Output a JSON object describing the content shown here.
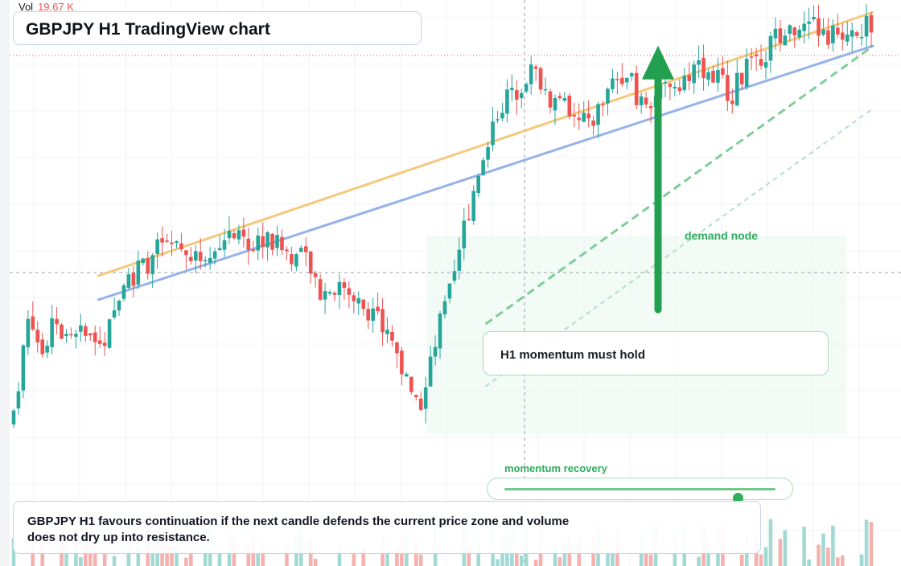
{
  "header": {
    "vol_label": "Vol",
    "vol_value": "19.67 K",
    "title": "GBPJPY H1 TradingView chart"
  },
  "annotations": {
    "demand_label": "demand node",
    "momentum_box_text": "H1 momentum must hold",
    "recovery_label": "momentum recovery",
    "recovery_level": 0.86,
    "note": "GBPJPY H1 favours continuation if the next candle defends the current price zone and volume does not dry up into resistance."
  },
  "colors": {
    "up": "#26a69a",
    "down": "#ef5350",
    "vol_up": "#a3d9d3",
    "vol_down": "#f5b1af",
    "upper_trendline": "#f5c97b",
    "lower_trendline": "#96b2ea",
    "accent_green": "#2fae5c"
  },
  "chart_data": {
    "type": "candlestick",
    "title": "GBPJPY H1 TradingView chart",
    "symbol": "GBPJPY",
    "timeframe": "H1",
    "grid": true,
    "legend": "none",
    "y_range": [
      0,
      100
    ],
    "x_range": [
      0,
      100
    ],
    "last_volume": "19.67 K",
    "price_path": [
      [
        0,
        14
      ],
      [
        2.2,
        38
      ],
      [
        3.5,
        30
      ],
      [
        5,
        35
      ],
      [
        7,
        31
      ],
      [
        9,
        34
      ],
      [
        11,
        32
      ],
      [
        13,
        44
      ],
      [
        15.5,
        47
      ],
      [
        17.5,
        52
      ],
      [
        19.5,
        50
      ],
      [
        21.5,
        48
      ],
      [
        23.5,
        52
      ],
      [
        25.5,
        54
      ],
      [
        27.5,
        50
      ],
      [
        29,
        53
      ],
      [
        31,
        51
      ],
      [
        33,
        49
      ],
      [
        34.5,
        48
      ],
      [
        35.5,
        41
      ],
      [
        37.5,
        43
      ],
      [
        39.5,
        40
      ],
      [
        41.5,
        38
      ],
      [
        43,
        34
      ],
      [
        44.5,
        30
      ],
      [
        46,
        22
      ],
      [
        47,
        17
      ],
      [
        48,
        21
      ],
      [
        49.5,
        34
      ],
      [
        51.5,
        45
      ],
      [
        52.5,
        55
      ],
      [
        54.5,
        70
      ],
      [
        56.5,
        80
      ],
      [
        58.5,
        84
      ],
      [
        60.5,
        88
      ],
      [
        62.5,
        82
      ],
      [
        64,
        81
      ],
      [
        65.5,
        76
      ],
      [
        67.5,
        78
      ],
      [
        69.5,
        84
      ],
      [
        71.5,
        89
      ],
      [
        72.5,
        80
      ],
      [
        73.5,
        82
      ],
      [
        75.5,
        83
      ],
      [
        77.5,
        86
      ],
      [
        79.5,
        89
      ],
      [
        81.5,
        87
      ],
      [
        83.5,
        83
      ],
      [
        85.5,
        89
      ],
      [
        87.5,
        92
      ],
      [
        89.5,
        96
      ],
      [
        91.5,
        94
      ],
      [
        92.5,
        100
      ],
      [
        93.5,
        95
      ],
      [
        95.5,
        95
      ],
      [
        97.5,
        97
      ]
    ],
    "trendlines": [
      {
        "name": "upper",
        "from": [
          10,
          45
        ],
        "to": [
          100,
          100
        ]
      },
      {
        "name": "lower",
        "from": [
          10,
          40
        ],
        "to": [
          100,
          93
        ]
      },
      {
        "name": "support-dashed",
        "from": [
          55,
          35
        ],
        "to": [
          100,
          93
        ]
      },
      {
        "name": "support-dashed-light",
        "from": [
          55,
          22
        ],
        "to": [
          100,
          80
        ]
      }
    ],
    "arrow": {
      "direction": "up",
      "from": [
        75,
        38
      ],
      "to": [
        75,
        93
      ]
    }
  }
}
